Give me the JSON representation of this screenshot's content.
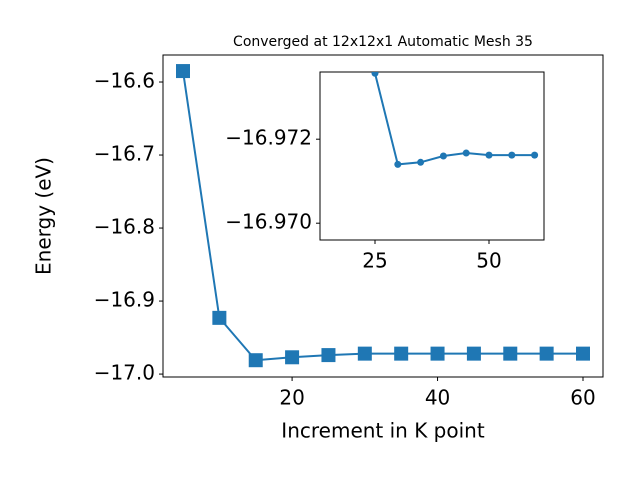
{
  "chart_data": [
    {
      "type": "line",
      "title": "Converged at 12x12x1 Automatic Mesh 35",
      "x_label": "Increment in K point",
      "y_label": "Energy (eV)",
      "x": [
        5,
        10,
        15,
        20,
        25,
        30,
        35,
        40,
        45,
        50,
        55,
        60
      ],
      "series": [
        {
          "name": "energy",
          "color": "#1f77b4",
          "marker": "square",
          "values": [
            -16.585,
            -16.923,
            -16.981,
            -16.977,
            -16.974,
            -16.972,
            -16.972,
            -16.972,
            -16.972,
            -16.972,
            -16.972,
            -16.972
          ]
        }
      ],
      "xlim": [
        2.25,
        62.75
      ],
      "xticks": [
        20,
        40,
        60
      ],
      "ylim": [
        -17.004,
        -16.563
      ],
      "yticks": [
        {
          "value": -17.0,
          "label": "−17.0"
        },
        {
          "value": -16.9,
          "label": "−16.9"
        },
        {
          "value": -16.8,
          "label": "−16.8"
        },
        {
          "value": -16.7,
          "label": "−16.7"
        },
        {
          "value": -16.6,
          "label": "−16.6"
        }
      ]
    },
    {
      "type": "line",
      "x": [
        25,
        30,
        35,
        40,
        45,
        50,
        55,
        60
      ],
      "series": [
        {
          "name": "energy-inset",
          "color": "#1f77b4",
          "marker": "circle",
          "values": [
            -16.97357,
            -16.9714,
            -16.97145,
            -16.9716,
            -16.97167,
            -16.97162,
            -16.97162,
            -16.97162
          ]
        }
      ],
      "xlim": [
        12.94,
        62.06
      ],
      "xticks": [
        25,
        50
      ],
      "ylim": [
        -16.9696,
        -16.9736
      ],
      "yticks": [
        {
          "value": -16.97,
          "label": "−16.970"
        },
        {
          "value": -16.972,
          "label": "−16.972"
        }
      ]
    }
  ]
}
